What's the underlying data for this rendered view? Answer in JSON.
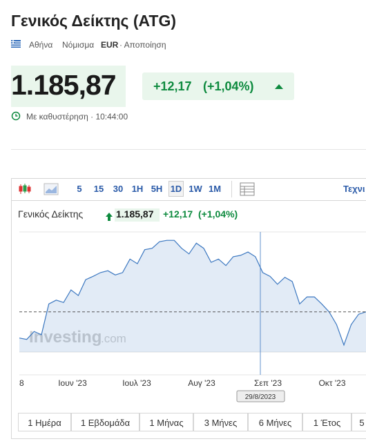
{
  "header": {
    "title": "Γενικός Δείκτης (ATG)",
    "location": "Αθήνα",
    "currency_label": "Νόμισμα",
    "currency": "EUR",
    "disclaimer": "· Αποποίηση"
  },
  "quote": {
    "price": "1.185,87",
    "change": "+12,17",
    "change_percent": "(+1,04%)",
    "delay": "Με καθυστέρηση · 10:44:00"
  },
  "toolbar": {
    "intervals": [
      "5",
      "15",
      "30",
      "1H",
      "5H",
      "1D",
      "1W",
      "1M"
    ],
    "technical": "Τεχνι"
  },
  "chart_data": {
    "type": "area",
    "title": "Γενικός Δείκτης",
    "price": "1.185,87",
    "change": "+12,17",
    "change_percent": "(+1,04%)",
    "x_labels": [
      "8",
      "Ιουν '23",
      "Ιουλ '23",
      "Αυγ '23",
      "Σεπ '23",
      "Οκτ '23"
    ],
    "values": [
      1130,
      1127,
      1144,
      1137,
      1203,
      1211,
      1206,
      1233,
      1221,
      1255,
      1262,
      1270,
      1274,
      1265,
      1270,
      1299,
      1289,
      1319,
      1322,
      1336,
      1339,
      1339,
      1322,
      1310,
      1333,
      1322,
      1292,
      1299,
      1285,
      1304,
      1307,
      1314,
      1304,
      1270,
      1262,
      1245,
      1260,
      1251,
      1203,
      1218,
      1218,
      1203,
      1186,
      1159,
      1115,
      1159,
      1181,
      1186
    ],
    "ylim": [
      1100,
      1357
    ],
    "color": "#3b77c0",
    "crosshair_label": "29/8/2023",
    "watermark": [
      "Investing",
      ".com"
    ]
  },
  "ranges": [
    "1 Ημέρα",
    "1 Εβδομάδα",
    "1 Μήνας",
    "3 Μήνες",
    "6 Μήνες",
    "1 Έτος",
    "5"
  ]
}
